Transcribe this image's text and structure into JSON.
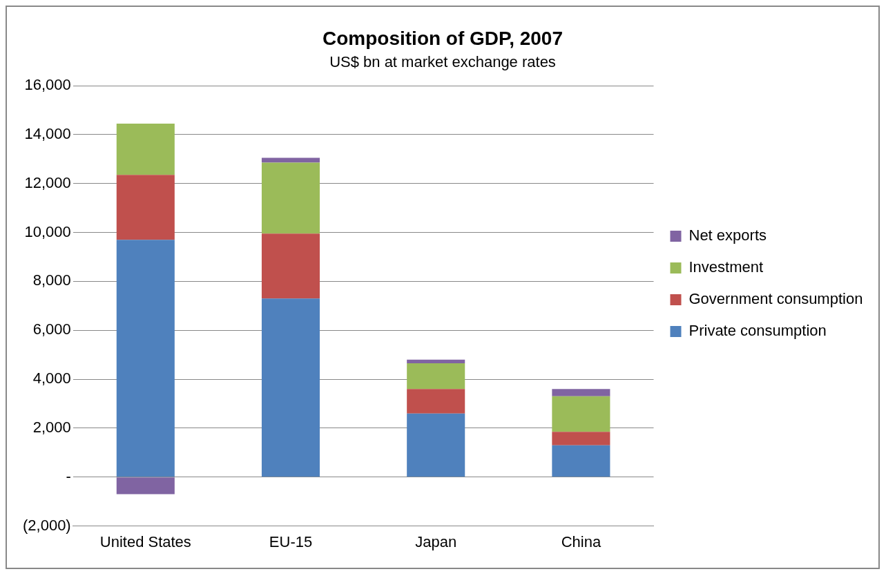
{
  "chart_data": {
    "type": "bar",
    "title": "Composition of GDP, 2007",
    "subtitle": "US$ bn at market exchange rates",
    "categories": [
      "United States",
      "EU-15",
      "Japan",
      "China"
    ],
    "stacked": true,
    "series": [
      {
        "name": "Private consumption",
        "color": "#4f81bd",
        "values": [
          9700,
          7300,
          2600,
          1300
        ]
      },
      {
        "name": "Government consumption",
        "color": "#c0504d",
        "values": [
          2650,
          2650,
          1000,
          550
        ]
      },
      {
        "name": "Investment",
        "color": "#9bbb59",
        "values": [
          2100,
          2900,
          1050,
          1450
        ]
      },
      {
        "name": "Net exports",
        "color": "#8064a2",
        "values": [
          -700,
          200,
          150,
          300
        ]
      }
    ],
    "ylim": [
      -2000,
      16000
    ],
    "yticks": [
      {
        "value": -2000,
        "label": "(2,000)"
      },
      {
        "value": 0,
        "label": "-"
      },
      {
        "value": 2000,
        "label": "2,000"
      },
      {
        "value": 4000,
        "label": "4,000"
      },
      {
        "value": 6000,
        "label": "6,000"
      },
      {
        "value": 8000,
        "label": "8,000"
      },
      {
        "value": 10000,
        "label": "10,000"
      },
      {
        "value": 12000,
        "label": "12,000"
      },
      {
        "value": 14000,
        "label": "14,000"
      },
      {
        "value": 16000,
        "label": "16,000"
      }
    ],
    "grid": "y",
    "legend": "right"
  }
}
